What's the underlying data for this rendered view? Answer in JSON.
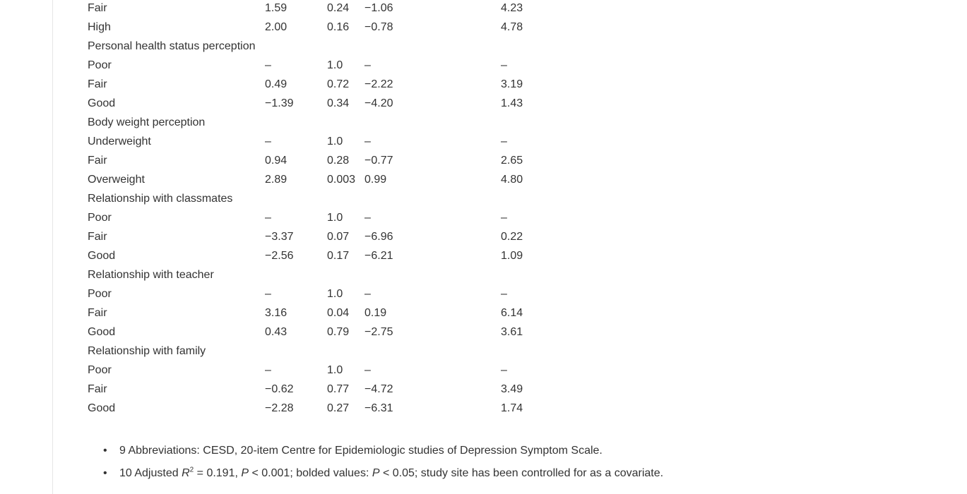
{
  "table": {
    "rows": [
      {
        "type": "data",
        "label": "Fair",
        "col1": "1.59",
        "col2": "0.24",
        "col3": "−1.06",
        "col4": "4.23"
      },
      {
        "type": "data",
        "label": "High",
        "col1": "2.00",
        "col2": "0.16",
        "col3": "−0.78",
        "col4": "4.78"
      },
      {
        "type": "section",
        "label": "Personal health status perception"
      },
      {
        "type": "data",
        "label": "Poor",
        "col1": "–",
        "col2": "1.0",
        "col3": "–",
        "col4": "–"
      },
      {
        "type": "data",
        "label": "Fair",
        "col1": "0.49",
        "col2": "0.72",
        "col3": "−2.22",
        "col4": "3.19"
      },
      {
        "type": "data",
        "label": "Good",
        "col1": "−1.39",
        "col2": "0.34",
        "col3": "−4.20",
        "col4": "1.43"
      },
      {
        "type": "section",
        "label": "Body weight perception"
      },
      {
        "type": "data",
        "label": "Underweight",
        "col1": "–",
        "col2": "1.0",
        "col3": "–",
        "col4": "–"
      },
      {
        "type": "data",
        "label": "Fair",
        "col1": "0.94",
        "col2": "0.28",
        "col3": "−0.77",
        "col4": "2.65"
      },
      {
        "type": "data",
        "label": "Overweight",
        "col1": "2.89",
        "col2": "0.003",
        "col3": "0.99",
        "col4": "4.80"
      },
      {
        "type": "section",
        "label": "Relationship with classmates"
      },
      {
        "type": "data",
        "label": "Poor",
        "col1": "–",
        "col2": "1.0",
        "col3": "–",
        "col4": "–"
      },
      {
        "type": "data",
        "label": "Fair",
        "col1": "−3.37",
        "col2": "0.07",
        "col3": "−6.96",
        "col4": "0.22"
      },
      {
        "type": "data",
        "label": "Good",
        "col1": "−2.56",
        "col2": "0.17",
        "col3": "−6.21",
        "col4": "1.09"
      },
      {
        "type": "section",
        "label": "Relationship with teacher"
      },
      {
        "type": "data",
        "label": "Poor",
        "col1": "–",
        "col2": "1.0",
        "col3": "–",
        "col4": "–"
      },
      {
        "type": "data",
        "label": "Fair",
        "col1": "3.16",
        "col2": "0.04",
        "col3": "0.19",
        "col4": "6.14"
      },
      {
        "type": "data",
        "label": "Good",
        "col1": "0.43",
        "col2": "0.79",
        "col3": "−2.75",
        "col4": "3.61"
      },
      {
        "type": "section",
        "label": "Relationship with family"
      },
      {
        "type": "data",
        "label": "Poor",
        "col1": "–",
        "col2": "1.0",
        "col3": "–",
        "col4": "–"
      },
      {
        "type": "data",
        "label": "Fair",
        "col1": "−0.62",
        "col2": "0.77",
        "col3": "−4.72",
        "col4": "3.49"
      },
      {
        "type": "data",
        "label": "Good",
        "col1": "−2.28",
        "col2": "0.27",
        "col3": "−6.31",
        "col4": "1.74"
      }
    ]
  },
  "footnotes": {
    "note1": "9 Abbreviations: CESD, 20-item Centre for Epidemiologic studies of Depression Symptom Scale.",
    "note2_prefix": "10 Adjusted ",
    "note2_r": "R",
    "note2_sup": "2",
    "note2_mid1": " = 0.191, ",
    "note2_p1": "P",
    "note2_mid2": " < 0.001; bolded values: ",
    "note2_p2": "P",
    "note2_suffix": " < 0.05; study site has been controlled for as a covariate."
  }
}
